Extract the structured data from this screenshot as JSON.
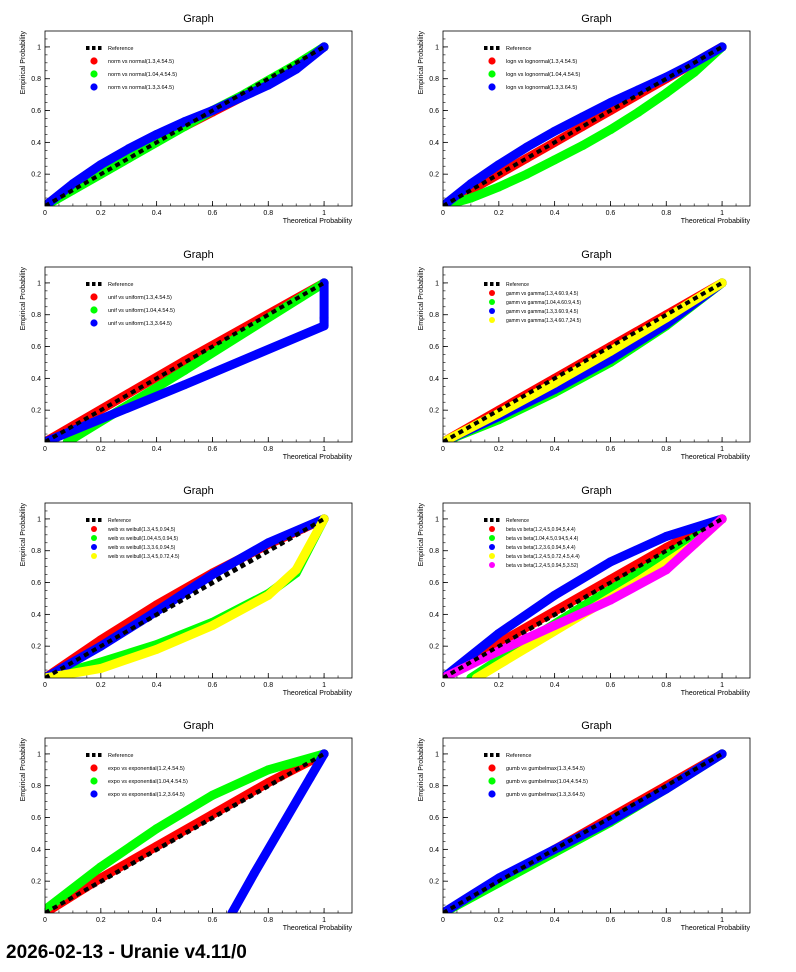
{
  "footer": "2026-02-13 - Uranie v4.11/0",
  "chart_data": [
    {
      "type": "scatter",
      "title": "Graph",
      "xlabel": "Theoretical Probability",
      "ylabel": "Empirical Probability",
      "xlim": [
        0,
        1.1
      ],
      "ylim": [
        0,
        1.1
      ],
      "xticks": [
        "0",
        "0.2",
        "0.4",
        "0.6",
        "0.8",
        "1"
      ],
      "yticks": [
        "0.2",
        "0.4",
        "0.6",
        "0.8",
        "1"
      ],
      "legend_position": "top-left",
      "series": [
        {
          "name": "Reference",
          "color": "#000000",
          "style": "dashed",
          "x": [
            0,
            1
          ],
          "y": [
            0,
            1
          ]
        },
        {
          "name": "norm vs normal(1.3,4.54.5)",
          "color": "#ff0000",
          "x": [
            0,
            0.1,
            0.2,
            0.3,
            0.4,
            0.5,
            0.6,
            0.7,
            0.8,
            0.9,
            1
          ],
          "y": [
            0,
            0.13,
            0.24,
            0.33,
            0.42,
            0.5,
            0.59,
            0.68,
            0.77,
            0.88,
            1
          ]
        },
        {
          "name": "norm vs normal(1.04,4.54.5)",
          "color": "#00ff00",
          "x": [
            0,
            0.1,
            0.2,
            0.3,
            0.4,
            0.5,
            0.6,
            0.7,
            0.8,
            0.9,
            1
          ],
          "y": [
            0,
            0.1,
            0.2,
            0.3,
            0.4,
            0.5,
            0.6,
            0.69,
            0.79,
            0.89,
            1
          ]
        },
        {
          "name": "norm vs normal(1.3,3.64.5)",
          "color": "#0000ff",
          "x": [
            0,
            0.1,
            0.2,
            0.3,
            0.4,
            0.5,
            0.6,
            0.7,
            0.8,
            0.9,
            1
          ],
          "y": [
            0,
            0.14,
            0.26,
            0.36,
            0.45,
            0.53,
            0.6,
            0.68,
            0.76,
            0.86,
            1
          ]
        }
      ]
    },
    {
      "type": "scatter",
      "title": "Graph",
      "xlabel": "Theoretical Probability",
      "ylabel": "Empirical Probability",
      "xlim": [
        0,
        1.1
      ],
      "ylim": [
        0,
        1.1
      ],
      "xticks": [
        "0",
        "0.2",
        "0.4",
        "0.6",
        "0.8",
        "1"
      ],
      "yticks": [
        "0.2",
        "0.4",
        "0.6",
        "0.8",
        "1"
      ],
      "legend_position": "top-left",
      "series": [
        {
          "name": "Reference",
          "color": "#000000",
          "style": "dashed",
          "x": [
            0,
            1
          ],
          "y": [
            0,
            1
          ]
        },
        {
          "name": "logn vs lognormal(1.3,4.54.5)",
          "color": "#ff0000",
          "x": [
            0,
            0.1,
            0.2,
            0.3,
            0.4,
            0.5,
            0.6,
            0.7,
            0.8,
            0.9,
            1
          ],
          "y": [
            0,
            0.1,
            0.2,
            0.3,
            0.4,
            0.5,
            0.6,
            0.7,
            0.8,
            0.9,
            1
          ]
        },
        {
          "name": "logn vs lognormal(1.04,4.54.5)",
          "color": "#00ff00",
          "x": [
            0,
            0.1,
            0.2,
            0.3,
            0.4,
            0.5,
            0.6,
            0.7,
            0.8,
            0.9,
            1
          ],
          "y": [
            0,
            0.05,
            0.12,
            0.2,
            0.29,
            0.38,
            0.48,
            0.59,
            0.71,
            0.84,
            1
          ]
        },
        {
          "name": "logn vs lognormal(1.3,3.64.5)",
          "color": "#0000ff",
          "x": [
            0,
            0.1,
            0.2,
            0.3,
            0.4,
            0.5,
            0.6,
            0.7,
            0.8,
            0.9,
            1
          ],
          "y": [
            0,
            0.14,
            0.26,
            0.37,
            0.47,
            0.56,
            0.65,
            0.73,
            0.81,
            0.9,
            1
          ]
        }
      ]
    },
    {
      "type": "scatter",
      "title": "Graph",
      "xlabel": "Theoretical Probability",
      "ylabel": "Empirical Probability",
      "xlim": [
        0,
        1.1
      ],
      "ylim": [
        0,
        1.1
      ],
      "xticks": [
        "0",
        "0.2",
        "0.4",
        "0.6",
        "0.8",
        "1"
      ],
      "yticks": [
        "0.2",
        "0.4",
        "0.6",
        "0.8",
        "1"
      ],
      "legend_position": "top-left",
      "series": [
        {
          "name": "Reference",
          "color": "#000000",
          "style": "dashed",
          "x": [
            0,
            1
          ],
          "y": [
            0,
            1
          ]
        },
        {
          "name": "unif vs uniform(1.3,4.54.5)",
          "color": "#ff0000",
          "x": [
            0,
            0.5,
            1
          ],
          "y": [
            0,
            0.51,
            1
          ]
        },
        {
          "name": "unif vs uniform(1.04,4.54.5)",
          "color": "#00ff00",
          "x": [
            0.08,
            0.5,
            1
          ],
          "y": [
            0,
            0.45,
            1
          ]
        },
        {
          "name": "unif vs uniform(1.3,3.64.5)",
          "color": "#0000ff",
          "x": [
            0,
            0.5,
            1,
            1,
            1
          ],
          "y": [
            0,
            0.36,
            0.73,
            0.78,
            1
          ]
        }
      ]
    },
    {
      "type": "scatter",
      "title": "Graph",
      "xlabel": "Theoretical Probability",
      "ylabel": "Empirical Probability",
      "xlim": [
        0,
        1.1
      ],
      "ylim": [
        0,
        1.1
      ],
      "xticks": [
        "0",
        "0.2",
        "0.4",
        "0.6",
        "0.8",
        "1"
      ],
      "yticks": [
        "0.2",
        "0.4",
        "0.6",
        "0.8",
        "1"
      ],
      "legend_position": "top-left",
      "series": [
        {
          "name": "Reference",
          "color": "#000000",
          "style": "dashed",
          "x": [
            0,
            1
          ],
          "y": [
            0,
            1
          ]
        },
        {
          "name": "gamm vs gamma(1.3,4.60.9,4.5)",
          "color": "#ff0000",
          "x": [
            0,
            0.2,
            0.4,
            0.6,
            0.8,
            1
          ],
          "y": [
            0,
            0.2,
            0.4,
            0.6,
            0.8,
            1
          ]
        },
        {
          "name": "gamm vs gamma(1.04,4.60.9,4.5)",
          "color": "#00ff00",
          "x": [
            0,
            0.2,
            0.4,
            0.6,
            0.8,
            1
          ],
          "y": [
            0,
            0.14,
            0.31,
            0.5,
            0.73,
            1
          ]
        },
        {
          "name": "gamm vs gamma(1.3,3.60.9,4.5)",
          "color": "#0000ff",
          "x": [
            0,
            0.2,
            0.4,
            0.6,
            0.8,
            1
          ],
          "y": [
            0,
            0.16,
            0.33,
            0.52,
            0.74,
            1
          ]
        },
        {
          "name": "gamm vs gamma(1.3,4.60.7,24.5)",
          "color": "#ffff00",
          "x": [
            0,
            0.2,
            0.4,
            0.6,
            0.8,
            1
          ],
          "y": [
            0,
            0.18,
            0.37,
            0.57,
            0.78,
            1
          ]
        }
      ]
    },
    {
      "type": "scatter",
      "title": "Graph",
      "xlabel": "Theoretical Probability",
      "ylabel": "Empirical Probability",
      "xlim": [
        0,
        1.1
      ],
      "ylim": [
        0,
        1.1
      ],
      "xticks": [
        "0",
        "0.2",
        "0.4",
        "0.6",
        "0.8",
        "1"
      ],
      "yticks": [
        "0.2",
        "0.4",
        "0.6",
        "0.8",
        "1"
      ],
      "legend_position": "top-left",
      "series": [
        {
          "name": "Reference",
          "color": "#000000",
          "style": "dashed",
          "x": [
            0,
            1
          ],
          "y": [
            0,
            1
          ]
        },
        {
          "name": "weib vs weibull(1.3,4.5,0.94,5)",
          "color": "#ff0000",
          "x": [
            0,
            0.2,
            0.4,
            0.6,
            0.8,
            1
          ],
          "y": [
            0,
            0.24,
            0.46,
            0.66,
            0.84,
            1
          ]
        },
        {
          "name": "weib vs weibull(1.04,4.5,0.94,5)",
          "color": "#00ff00",
          "x": [
            0,
            0.2,
            0.4,
            0.6,
            0.8,
            0.9,
            1
          ],
          "y": [
            0,
            0.1,
            0.21,
            0.35,
            0.53,
            0.66,
            1
          ]
        },
        {
          "name": "weib vs weibull(1.3,3.6,0.94,5)",
          "color": "#0000ff",
          "x": [
            0,
            0.2,
            0.4,
            0.6,
            0.8,
            1
          ],
          "y": [
            0,
            0.2,
            0.42,
            0.65,
            0.85,
            1
          ]
        },
        {
          "name": "weib vs weibull(1.3,4.5,0.72,4.5)",
          "color": "#ffff00",
          "x": [
            0,
            0.2,
            0.4,
            0.6,
            0.8,
            0.9,
            1
          ],
          "y": [
            0,
            0.06,
            0.18,
            0.33,
            0.52,
            0.68,
            1
          ]
        }
      ]
    },
    {
      "type": "scatter",
      "title": "Graph",
      "xlabel": "Theoretical Probability",
      "ylabel": "Empirical Probability",
      "xlim": [
        0,
        1.1
      ],
      "ylim": [
        0,
        1.1
      ],
      "xticks": [
        "0",
        "0.2",
        "0.4",
        "0.6",
        "0.8",
        "1"
      ],
      "yticks": [
        "0.2",
        "0.4",
        "0.6",
        "0.8",
        "1"
      ],
      "legend_position": "top-left",
      "series": [
        {
          "name": "Reference",
          "color": "#000000",
          "style": "dashed",
          "x": [
            0,
            1
          ],
          "y": [
            0,
            1
          ]
        },
        {
          "name": "beta vs beta(1.2,4.5,0.94,5,4.4)",
          "color": "#ff0000",
          "x": [
            0,
            0.2,
            0.4,
            0.6,
            0.8,
            1
          ],
          "y": [
            0,
            0.22,
            0.42,
            0.62,
            0.82,
            1
          ]
        },
        {
          "name": "beta vs beta(1.04,4.5,0.94,5,4.4)",
          "color": "#00ff00",
          "x": [
            0.1,
            0.3,
            0.5,
            0.7,
            0.9,
            1
          ],
          "y": [
            0,
            0.23,
            0.45,
            0.66,
            0.88,
            1
          ]
        },
        {
          "name": "beta vs beta(1.2,3.6,0.94,5,4.4)",
          "color": "#0000ff",
          "x": [
            0,
            0.2,
            0.4,
            0.6,
            0.8,
            1
          ],
          "y": [
            0,
            0.28,
            0.52,
            0.73,
            0.89,
            1
          ]
        },
        {
          "name": "beta vs beta(1.2,4.5,0.72,4.5,4.4)",
          "color": "#ffff00",
          "x": [
            0.12,
            0.3,
            0.5,
            0.7,
            0.9,
            1
          ],
          "y": [
            0,
            0.19,
            0.4,
            0.61,
            0.84,
            1
          ]
        },
        {
          "name": "beta vs beta(1.2,4.5,0.94,5,3.52)",
          "color": "#ff00ff",
          "x": [
            0,
            0.2,
            0.4,
            0.6,
            0.8,
            1
          ],
          "y": [
            0,
            0.17,
            0.33,
            0.49,
            0.68,
            1
          ]
        }
      ]
    },
    {
      "type": "scatter",
      "title": "Graph",
      "xlabel": "Theoretical Probability",
      "ylabel": "Empirical Probability",
      "xlim": [
        0,
        1.1
      ],
      "ylim": [
        0,
        1.1
      ],
      "xticks": [
        "0",
        "0.2",
        "0.4",
        "0.6",
        "0.8",
        "1"
      ],
      "yticks": [
        "0.2",
        "0.4",
        "0.6",
        "0.8",
        "1"
      ],
      "legend_position": "top-left",
      "series": [
        {
          "name": "Reference",
          "color": "#000000",
          "style": "dashed",
          "x": [
            0,
            1
          ],
          "y": [
            0,
            1
          ]
        },
        {
          "name": "expo vs exponential(1.2,4.54.5)",
          "color": "#ff0000",
          "x": [
            0,
            0.2,
            0.4,
            0.6,
            0.8,
            1
          ],
          "y": [
            0,
            0.22,
            0.42,
            0.62,
            0.82,
            1
          ]
        },
        {
          "name": "expo vs exponential(1.04,4.54.5)",
          "color": "#00ff00",
          "x": [
            0,
            0.2,
            0.4,
            0.6,
            0.8,
            1
          ],
          "y": [
            0.02,
            0.29,
            0.53,
            0.74,
            0.9,
            1
          ]
        },
        {
          "name": "expo vs exponential(1.2,3.64.5)",
          "color": "#0000ff",
          "x": [
            0.67,
            0.75,
            0.85,
            0.95,
            1
          ],
          "y": [
            0,
            0.25,
            0.55,
            0.85,
            1
          ]
        }
      ]
    },
    {
      "type": "scatter",
      "title": "Graph",
      "xlabel": "Theoretical Probability",
      "ylabel": "Empirical Probability",
      "xlim": [
        0,
        1.1
      ],
      "ylim": [
        0,
        1.1
      ],
      "xticks": [
        "0",
        "0.2",
        "0.4",
        "0.6",
        "0.8",
        "1"
      ],
      "yticks": [
        "0.2",
        "0.4",
        "0.6",
        "0.8",
        "1"
      ],
      "legend_position": "top-left",
      "series": [
        {
          "name": "Reference",
          "color": "#000000",
          "style": "dashed",
          "x": [
            0,
            1
          ],
          "y": [
            0,
            1
          ]
        },
        {
          "name": "gumb vs gumbelmax(1.3,4.54.5)",
          "color": "#ff0000",
          "x": [
            0,
            0.2,
            0.4,
            0.6,
            0.8,
            1
          ],
          "y": [
            0,
            0.2,
            0.4,
            0.6,
            0.8,
            1
          ]
        },
        {
          "name": "gumb vs gumbelmax(1.04,4.54.5)",
          "color": "#00ff00",
          "x": [
            0,
            0.2,
            0.4,
            0.6,
            0.8,
            1
          ],
          "y": [
            0,
            0.19,
            0.38,
            0.57,
            0.78,
            1
          ]
        },
        {
          "name": "gumb vs gumbelmax(1.3,3.64.5)",
          "color": "#0000ff",
          "x": [
            0,
            0.2,
            0.4,
            0.6,
            0.8,
            1
          ],
          "y": [
            0,
            0.22,
            0.4,
            0.58,
            0.78,
            1
          ]
        }
      ]
    }
  ]
}
